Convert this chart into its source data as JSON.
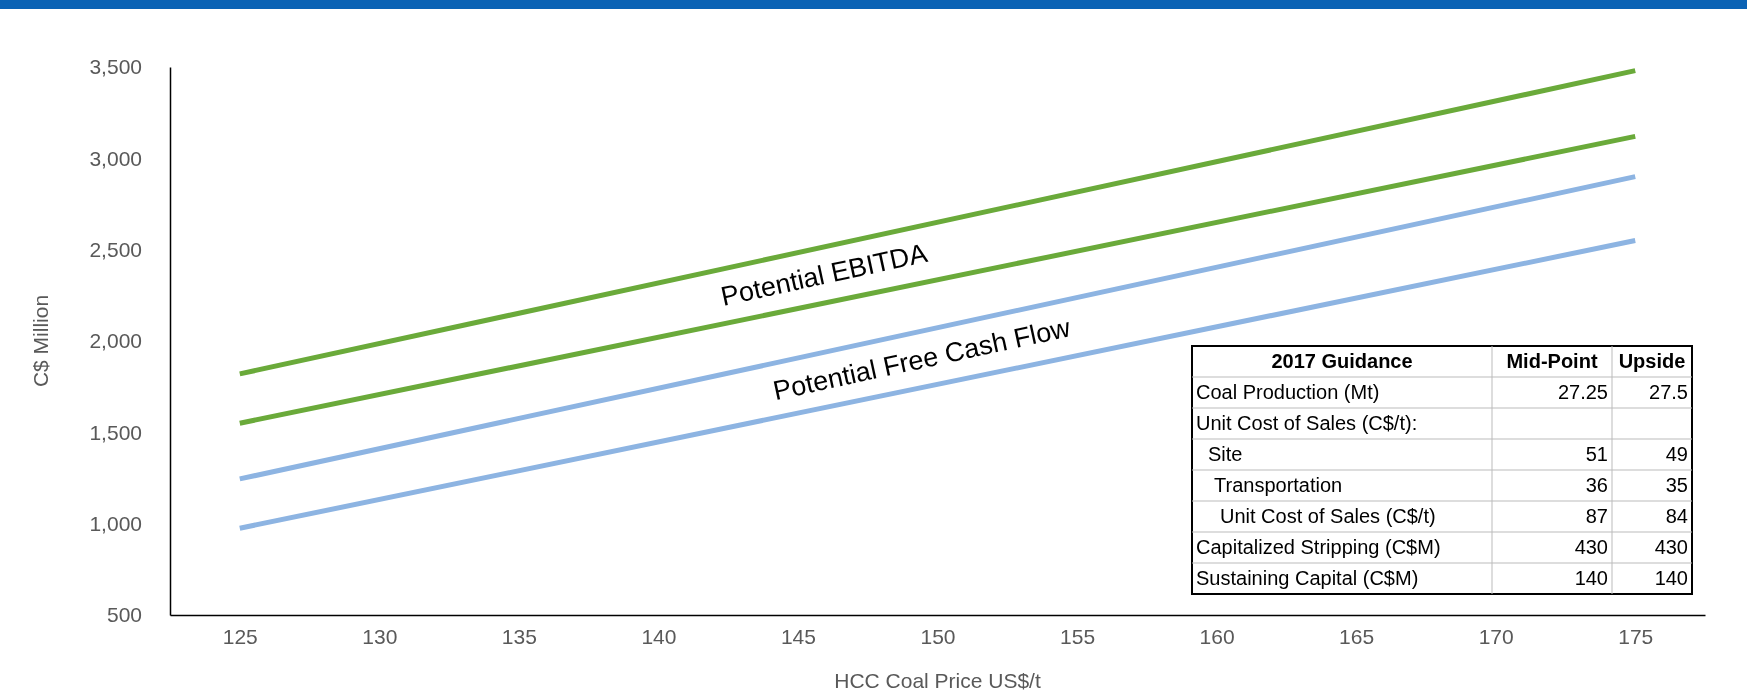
{
  "chart_data": {
    "type": "line",
    "xlabel": "HCC Coal Price US$/t",
    "ylabel": "C$ Million",
    "x": [
      125,
      175
    ],
    "series": [
      {
        "color": "#6aaa3a",
        "values": [
          1820,
          3480
        ]
      },
      {
        "color": "#6aaa3a",
        "values": [
          1550,
          3120
        ]
      },
      {
        "color": "#8db4e2",
        "values": [
          1245,
          2900
        ]
      },
      {
        "color": "#8db4e2",
        "values": [
          975,
          2550
        ]
      }
    ],
    "xlim": [
      122.5,
      177.5
    ],
    "xticks": [
      125,
      130,
      135,
      140,
      145,
      150,
      155,
      160,
      165,
      170,
      175
    ],
    "ylim": [
      500,
      3500
    ],
    "yticks": [
      {
        "value": 500,
        "label": "500"
      },
      {
        "value": 1000,
        "label": "1,000"
      },
      {
        "value": 1500,
        "label": "1,500"
      },
      {
        "value": 2000,
        "label": "2,000"
      },
      {
        "value": 2500,
        "label": "2,500"
      },
      {
        "value": 3000,
        "label": "3,000"
      },
      {
        "value": 3500,
        "label": "3,500"
      }
    ],
    "grid": false,
    "marker": "none",
    "line_style": "solid",
    "annotations": [
      "Potential EBITDA",
      "Potential Free Cash Flow",
      "2017 Guidance",
      "Mid-Point",
      "Upside",
      "Coal Production (Mt)",
      "27.25",
      "27.5",
      "Unit Cost of Sales (C$/t):",
      "  Site",
      "51",
      "49",
      "   Transportation",
      "36",
      "35",
      "    Unit Cost of Sales (C$/t)",
      "87",
      "84",
      "Capitalized Stripping (C$M)",
      "430",
      "430",
      "Sustaining Capital (C$M)",
      "140",
      "140"
    ]
  }
}
